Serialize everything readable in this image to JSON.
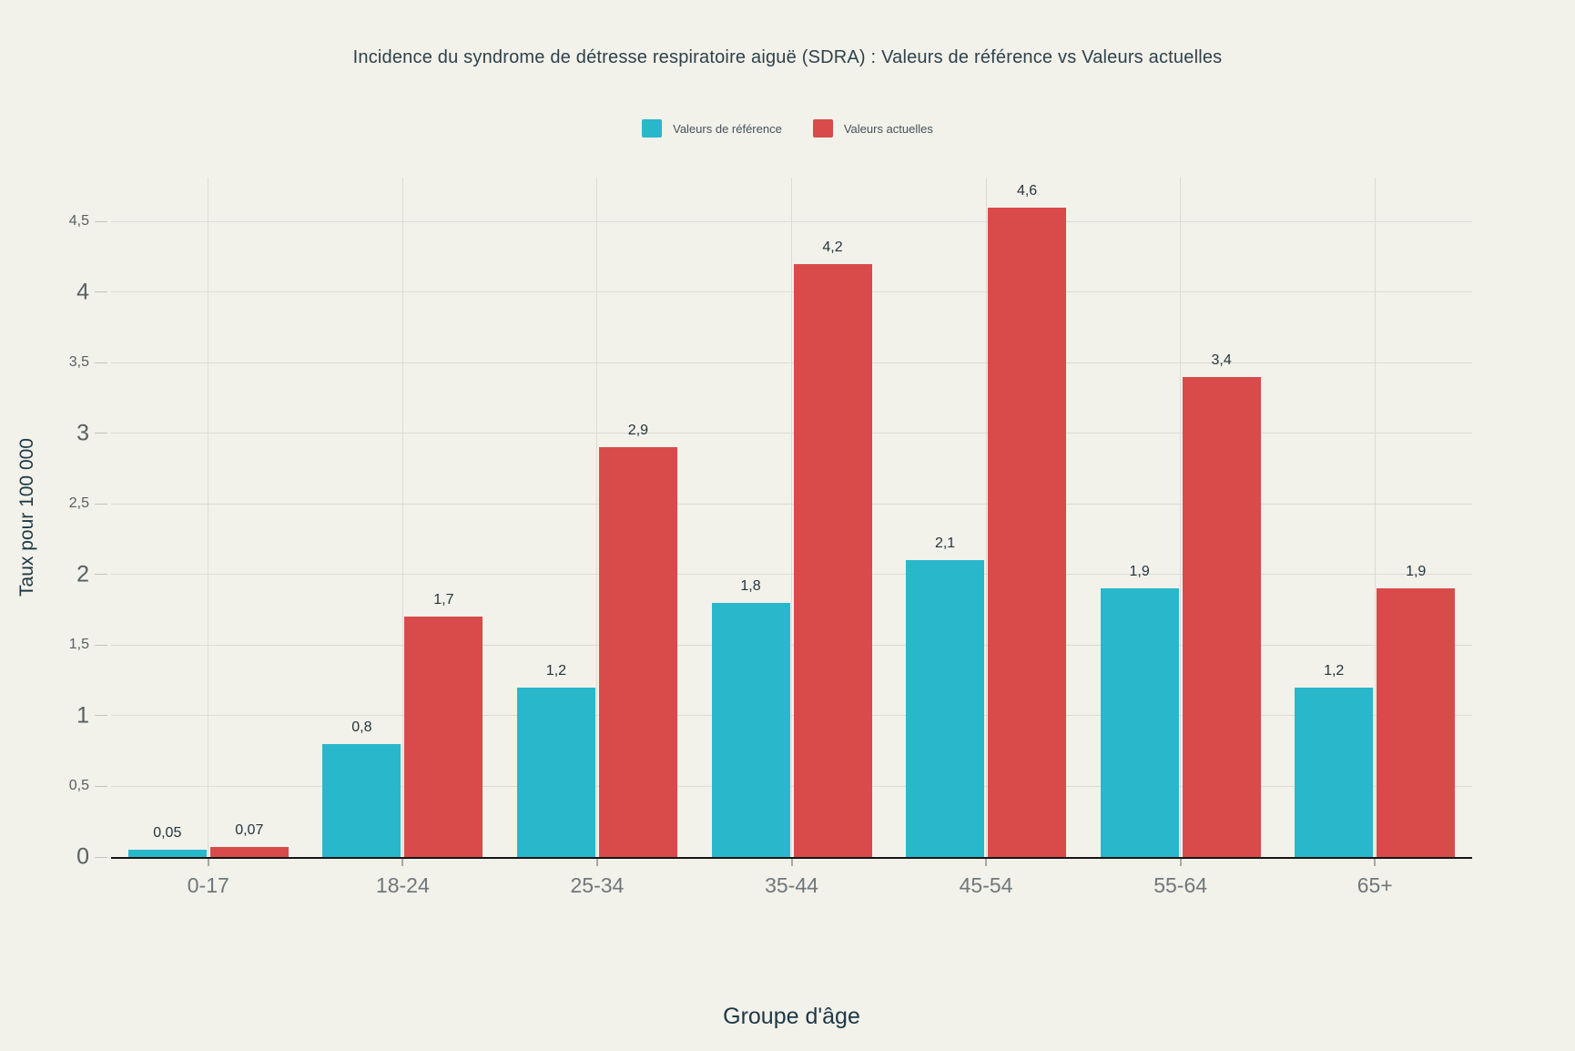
{
  "page": {
    "background": "#f2f1ea"
  },
  "chart_data": {
    "type": "bar",
    "title": "Incidence du syndrome de détresse respiratoire aiguë (SDRA) : Valeurs de référence vs Valeurs actuelles",
    "xlabel": "Groupe d'âge",
    "ylabel": "Taux pour 100 000",
    "categories": [
      "0-17",
      "18-24",
      "25-34",
      "35-44",
      "45-54",
      "55-64",
      "65+"
    ],
    "series": [
      {
        "name": "Valeurs de référence",
        "color": "#29b7cb",
        "values": [
          0.05,
          0.8,
          1.2,
          1.8,
          2.1,
          1.9,
          1.2
        ],
        "labels": [
          "0,05",
          "0,8",
          "1,2",
          "1,8",
          "2,1",
          "1,9",
          "1,2"
        ]
      },
      {
        "name": "Valeurs actuelles",
        "color": "#d84b4a",
        "values": [
          0.07,
          1.7,
          2.9,
          4.2,
          4.6,
          3.4,
          1.9
        ],
        "labels": [
          "0,07",
          "1,7",
          "2,9",
          "4,2",
          "4,6",
          "3,4",
          "1,9"
        ]
      }
    ],
    "y_ticks": [
      {
        "value": 0,
        "label": "0",
        "major": true
      },
      {
        "value": 0.5,
        "label": "0,5",
        "major": false
      },
      {
        "value": 1,
        "label": "1",
        "major": true
      },
      {
        "value": 1.5,
        "label": "1,5",
        "major": false
      },
      {
        "value": 2,
        "label": "2",
        "major": true
      },
      {
        "value": 2.5,
        "label": "2,5",
        "major": false
      },
      {
        "value": 3,
        "label": "3",
        "major": true
      },
      {
        "value": 3.5,
        "label": "3,5",
        "major": false
      },
      {
        "value": 4,
        "label": "4",
        "major": true
      },
      {
        "value": 4.5,
        "label": "4,5",
        "major": false
      }
    ],
    "ylim": [
      0,
      4.81
    ],
    "grid": true,
    "legend_position": "top-center",
    "colors": {
      "background": "#f2f1ea",
      "gridline": "#dddcd4",
      "axis_line": "#161616",
      "reference_series": "#29b7cb",
      "current_series": "#d84b4a"
    }
  }
}
